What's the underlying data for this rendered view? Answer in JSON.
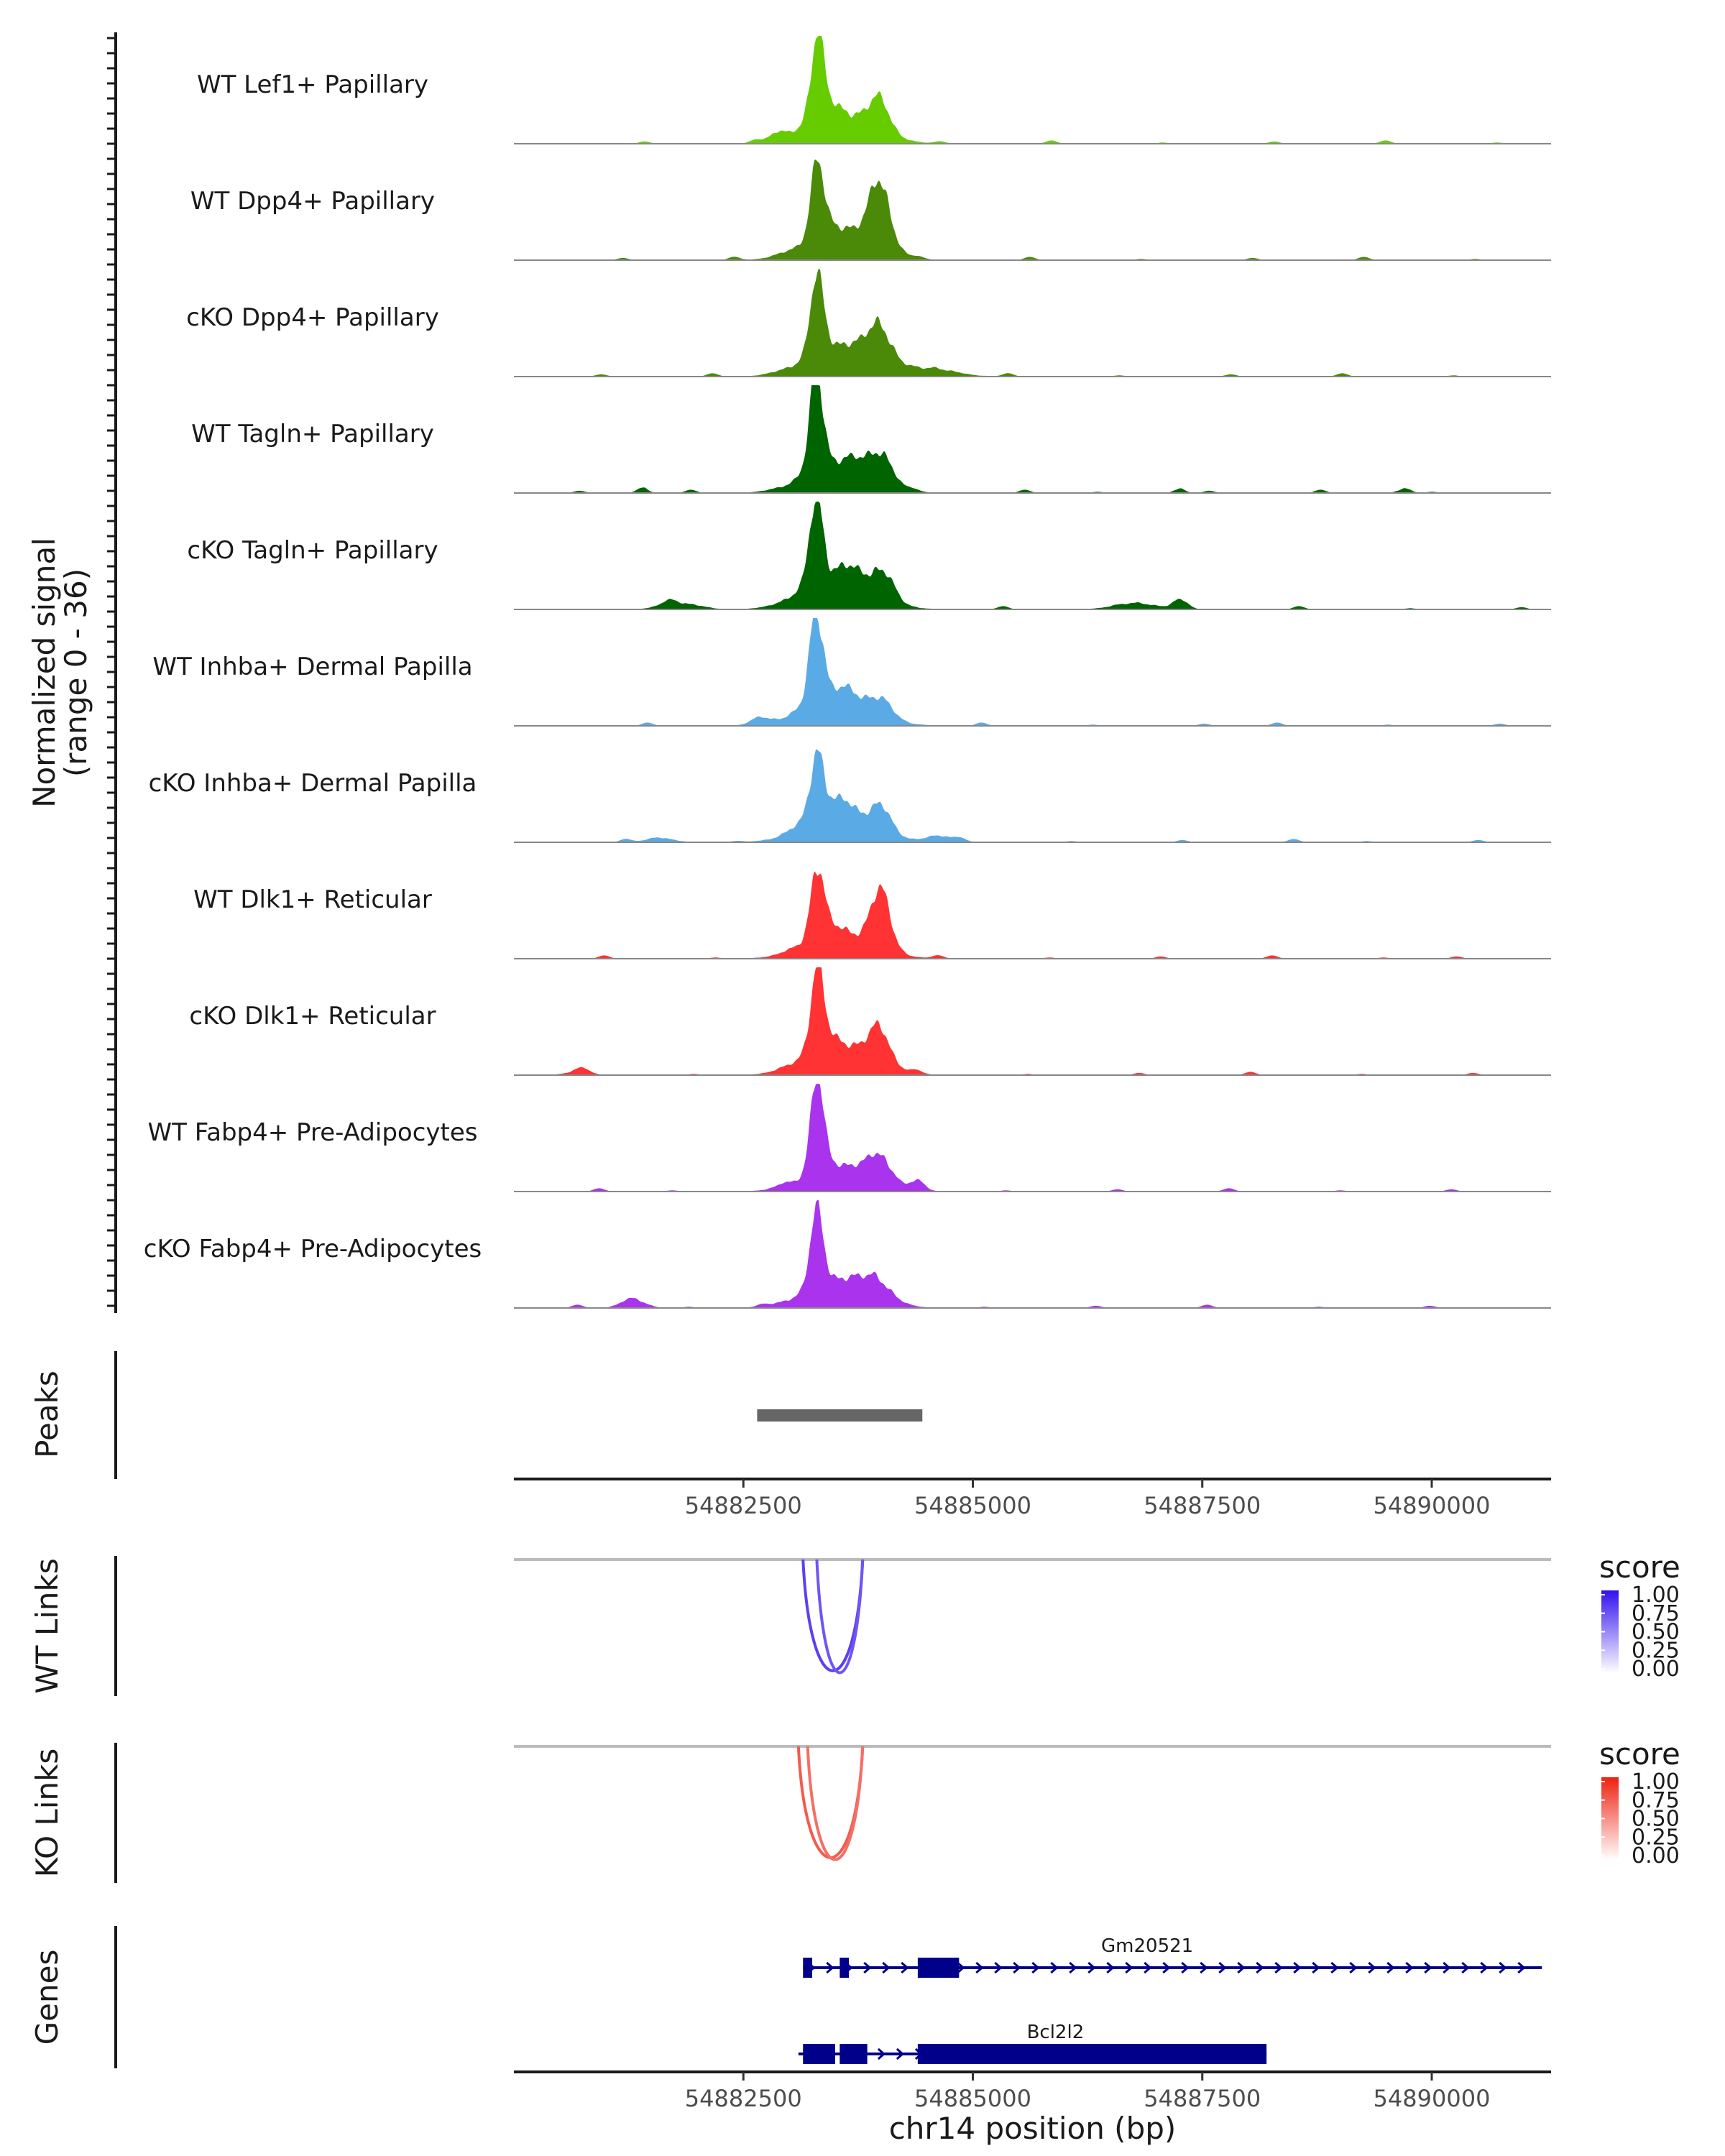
{
  "chart_data": {
    "type": "area",
    "region": "chr14",
    "x_range": [
      54880000,
      54891300
    ],
    "coverage": {
      "ylabel_line1": "Normalized signal",
      "ylabel_line2": "(range 0 - 36)",
      "y_range": [
        0,
        36
      ],
      "tracks": [
        {
          "name": "WT Lef1+ Papillary",
          "color": "#66cc00",
          "profile": "lef1"
        },
        {
          "name": "WT Dpp4+ Papillary",
          "color": "#4b8a08",
          "profile": "dpp4wt"
        },
        {
          "name": "cKO Dpp4+ Papillary",
          "color": "#4b8a08",
          "profile": "dpp4ko"
        },
        {
          "name": "WT Tagln+ Papillary",
          "color": "#006400",
          "profile": "taglnwt"
        },
        {
          "name": "cKO Tagln+ Papillary",
          "color": "#006400",
          "profile": "taglnko"
        },
        {
          "name": "WT Inhba+ Dermal Papilla",
          "color": "#5aaae5",
          "profile": "inhbawt"
        },
        {
          "name": "cKO Inhba+ Dermal Papilla",
          "color": "#5aaae5",
          "profile": "inhbako"
        },
        {
          "name": "WT Dlk1+ Reticular",
          "color": "#ff3333",
          "profile": "dlk1wt"
        },
        {
          "name": "cKO Dlk1+ Reticular",
          "color": "#ff3333",
          "profile": "dlk1ko"
        },
        {
          "name": "WT Fabp4+ Pre-Adipocytes",
          "color": "#aa33ee",
          "profile": "fabp4wt"
        },
        {
          "name": "cKO Fabp4+ Pre-Adipocytes",
          "color": "#aa33ee",
          "profile": "fabp4ko"
        }
      ]
    },
    "peaks": {
      "label": "Peaks",
      "intervals": [
        [
          54882650,
          54884450
        ]
      ]
    },
    "x_axis": {
      "ticks": [
        54882500,
        54885000,
        54887500,
        54890000
      ],
      "tick_labels": [
        "54882500",
        "54885000",
        "54887500",
        "54890000"
      ],
      "title": "chr14 position (bp)"
    },
    "links": [
      {
        "label": "WT Links",
        "legend_title": "score",
        "color": "#3311ee",
        "legend_labels": [
          "1.00",
          "0.75",
          "0.50",
          "0.25",
          "0.00"
        ],
        "arcs": [
          {
            "start": 54883150,
            "end": 54883800,
            "score": 0.75
          },
          {
            "start": 54883300,
            "end": 54883800,
            "score": 0.6
          }
        ]
      },
      {
        "label": "KO Links",
        "legend_title": "score",
        "color": "#ee2211",
        "legend_labels": [
          "1.00",
          "0.75",
          "0.50",
          "0.25",
          "0.00"
        ],
        "arcs": [
          {
            "start": 54883100,
            "end": 54883800,
            "score": 0.65
          },
          {
            "start": 54883200,
            "end": 54883800,
            "score": 0.5
          }
        ]
      }
    ],
    "genes": {
      "label": "Genes",
      "color": "#00008b",
      "items": [
        {
          "name": "Gm20521",
          "start": 54883150,
          "end": 54891200,
          "strand": "+",
          "exons": [
            [
              54883150,
              54883250
            ],
            [
              54883550,
              54883650
            ],
            [
              54884400,
              54884850
            ]
          ]
        },
        {
          "name": "Bcl2l2",
          "start": 54883100,
          "end": 54888200,
          "strand": "+",
          "exons": [
            [
              54883150,
              54883500
            ],
            [
              54883550,
              54883850
            ],
            [
              54884400,
              54888200
            ]
          ]
        }
      ]
    }
  }
}
